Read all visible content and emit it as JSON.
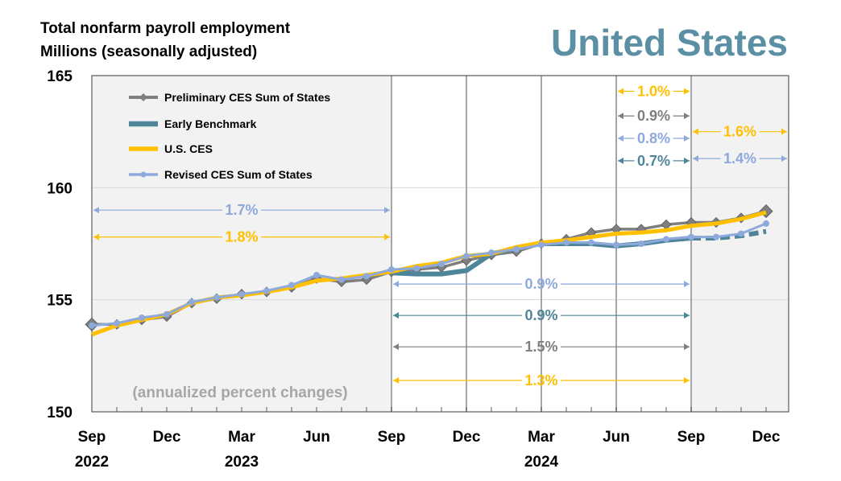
{
  "header": {
    "title_line1": "Total nonfarm payroll employment",
    "title_line2": "Millions (seasonally adjusted)",
    "region": "United States"
  },
  "chart_data": {
    "type": "line",
    "title": "Total nonfarm payroll employment",
    "ylabel": "Millions (seasonally adjusted)",
    "ylim": [
      150,
      165
    ],
    "yticks": [
      150,
      155,
      160,
      165
    ],
    "x_tick_labels": [
      {
        "month": "Sep",
        "year": "2022",
        "index": 0
      },
      {
        "month": "Dec",
        "year": "",
        "index": 3
      },
      {
        "month": "Mar",
        "year": "2023",
        "index": 6
      },
      {
        "month": "Jun",
        "year": "",
        "index": 9
      },
      {
        "month": "Sep",
        "year": "",
        "index": 12
      },
      {
        "month": "Dec",
        "year": "",
        "index": 15
      },
      {
        "month": "Mar",
        "year": "2024",
        "index": 18
      },
      {
        "month": "Jun",
        "year": "",
        "index": 21
      },
      {
        "month": "Sep",
        "year": "",
        "index": 24
      },
      {
        "month": "Dec",
        "year": "",
        "index": 27
      }
    ],
    "x": [
      "2022-09",
      "2022-10",
      "2022-11",
      "2022-12",
      "2023-01",
      "2023-02",
      "2023-03",
      "2023-04",
      "2023-05",
      "2023-06",
      "2023-07",
      "2023-08",
      "2023-09",
      "2023-10",
      "2023-11",
      "2023-12",
      "2024-01",
      "2024-02",
      "2024-03",
      "2024-04",
      "2024-05",
      "2024-06",
      "2024-07",
      "2024-08",
      "2024-09",
      "2024-10",
      "2024-11",
      "2024-12"
    ],
    "series": [
      {
        "name": "Preliminary CES Sum of States",
        "color": "#7F7F7F",
        "marker": "diamond",
        "values": [
          153.9,
          153.9,
          154.1,
          154.25,
          154.85,
          155.05,
          155.25,
          155.35,
          155.55,
          155.95,
          155.8,
          155.9,
          156.25,
          156.35,
          156.45,
          156.75,
          157.0,
          157.15,
          157.5,
          157.7,
          158.0,
          158.15,
          158.15,
          158.35,
          158.45,
          158.45,
          158.65,
          158.95
        ]
      },
      {
        "name": "Early Benchmark",
        "color": "#4E8598",
        "marker": "none",
        "values": [
          null,
          null,
          null,
          null,
          null,
          null,
          null,
          null,
          null,
          null,
          null,
          null,
          156.2,
          156.15,
          156.15,
          156.3,
          157.05,
          157.3,
          157.5,
          157.5,
          157.5,
          157.4,
          157.5,
          157.65,
          157.75,
          157.75,
          157.85,
          158.05
        ],
        "dashed_from_index": 24
      },
      {
        "name": "U.S. CES",
        "color": "#FFC000",
        "marker": "none",
        "values": [
          153.45,
          153.85,
          154.1,
          154.35,
          154.85,
          155.1,
          155.2,
          155.35,
          155.55,
          155.85,
          155.95,
          156.1,
          156.25,
          156.5,
          156.65,
          156.95,
          157.05,
          157.35,
          157.55,
          157.65,
          157.8,
          157.95,
          158.0,
          158.1,
          158.3,
          158.4,
          158.6,
          158.9
        ]
      },
      {
        "name": "Revised CES Sum of States",
        "color": "#8EA9DB",
        "marker": "circle",
        "values": [
          153.85,
          153.95,
          154.2,
          154.35,
          154.9,
          155.1,
          155.25,
          155.4,
          155.65,
          156.1,
          155.9,
          156.05,
          156.35,
          156.4,
          156.6,
          156.95,
          157.1,
          157.25,
          157.45,
          157.55,
          157.55,
          157.45,
          157.5,
          157.7,
          157.8,
          157.8,
          157.95,
          158.4
        ]
      }
    ],
    "annotation_title": "(annualized percent changes)",
    "annotations": [
      {
        "label": "1.7%",
        "color": "#8EA9DB",
        "from": 0,
        "to": 12,
        "y": 159
      },
      {
        "label": "1.8%",
        "color": "#FFC000",
        "from": 0,
        "to": 12,
        "y": 157.8
      },
      {
        "label": "0.9%",
        "color": "#8EA9DB",
        "from": 12,
        "to": 24,
        "y": 155.7
      },
      {
        "label": "0.9%",
        "color": "#4E8598",
        "from": 12,
        "to": 24,
        "y": 154.3
      },
      {
        "label": "1.5%",
        "color": "#7F7F7F",
        "from": 12,
        "to": 24,
        "y": 152.9
      },
      {
        "label": "1.3%",
        "color": "#FFC000",
        "from": 12,
        "to": 24,
        "y": 151.4
      },
      {
        "label": "1.0%",
        "color": "#FFC000",
        "from": 21,
        "to": 24,
        "y": 164.3
      },
      {
        "label": "0.9%",
        "color": "#7F7F7F",
        "from": 21,
        "to": 24,
        "y": 163.2
      },
      {
        "label": "0.8%",
        "color": "#8EA9DB",
        "from": 21,
        "to": 24,
        "y": 162.2
      },
      {
        "label": "0.7%",
        "color": "#4E8598",
        "from": 21,
        "to": 24,
        "y": 161.2
      },
      {
        "label": "1.6%",
        "color": "#FFC000",
        "from": 24,
        "to": 28,
        "y": 162.5
      },
      {
        "label": "1.4%",
        "color": "#8EA9DB",
        "from": 24,
        "to": 28,
        "y": 161.3
      }
    ],
    "grid": true,
    "legend_position": "top-left",
    "shaded_periods": [
      [
        0,
        12
      ],
      [
        24,
        28
      ]
    ]
  }
}
